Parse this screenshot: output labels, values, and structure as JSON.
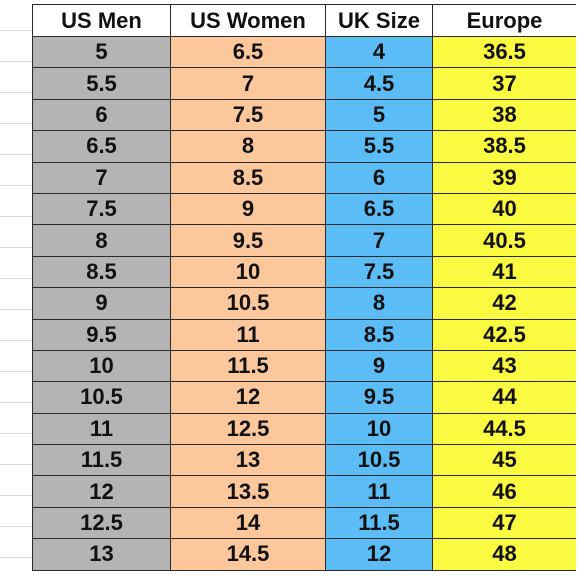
{
  "table": {
    "headers": [
      "US Men",
      "US Women",
      "UK Size",
      "Europe"
    ],
    "colors": {
      "us_men": "#b4b4b4",
      "us_women": "#fcc79b",
      "uk_size": "#5bbcf6",
      "europe": "#fafa41"
    },
    "rows": [
      [
        "5",
        "6.5",
        "4",
        "36.5"
      ],
      [
        "5.5",
        "7",
        "4.5",
        "37"
      ],
      [
        "6",
        "7.5",
        "5",
        "38"
      ],
      [
        "6.5",
        "8",
        "5.5",
        "38.5"
      ],
      [
        "7",
        "8.5",
        "6",
        "39"
      ],
      [
        "7.5",
        "9",
        "6.5",
        "40"
      ],
      [
        "8",
        "9.5",
        "7",
        "40.5"
      ],
      [
        "8.5",
        "10",
        "7.5",
        "41"
      ],
      [
        "9",
        "10.5",
        "8",
        "42"
      ],
      [
        "9.5",
        "11",
        "8.5",
        "42.5"
      ],
      [
        "10",
        "11.5",
        "9",
        "43"
      ],
      [
        "10.5",
        "12",
        "9.5",
        "44"
      ],
      [
        "11",
        "12.5",
        "10",
        "44.5"
      ],
      [
        "11.5",
        "13",
        "10.5",
        "45"
      ],
      [
        "12",
        "13.5",
        "11",
        "46"
      ],
      [
        "12.5",
        "14",
        "11.5",
        "47"
      ],
      [
        "13",
        "14.5",
        "12",
        "48"
      ]
    ]
  }
}
